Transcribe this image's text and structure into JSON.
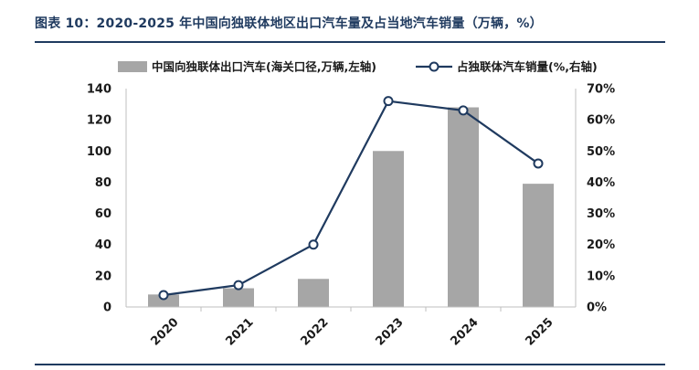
{
  "title": "图表 10：2020-2025 年中国向独联体地区出口汽车量及占当地汽车销量（万辆，%）",
  "chart_data": {
    "type": "bar",
    "categories": [
      "2020",
      "2021",
      "2022",
      "2023",
      "2024",
      "2025"
    ],
    "series": [
      {
        "name": "中国向独联体出口汽车(海关口径,万辆,左轴)",
        "type": "bar",
        "axis": "left",
        "color": "#a6a6a6",
        "values": [
          8,
          12,
          18,
          100,
          128,
          79
        ]
      },
      {
        "name": "占独联体汽车销量(%,右轴)",
        "type": "line",
        "axis": "right",
        "color": "#1f3a5f",
        "values": [
          3.8,
          7,
          20,
          66,
          63,
          46
        ]
      }
    ],
    "y_left": {
      "min": 0,
      "max": 140,
      "ticks": [
        "0",
        "20",
        "40",
        "60",
        "80",
        "100",
        "120",
        "140"
      ]
    },
    "y_right": {
      "min": 0,
      "max": 70,
      "ticks": [
        "0%",
        "10%",
        "20%",
        "30%",
        "40%",
        "50%",
        "60%",
        "70%"
      ]
    },
    "legend_position": "top",
    "grid": false
  }
}
